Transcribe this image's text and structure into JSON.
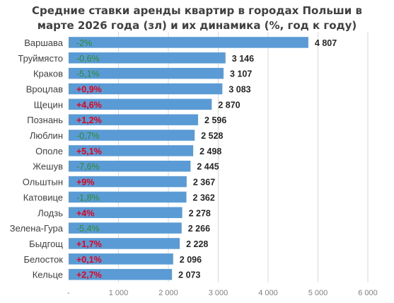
{
  "chart_data": {
    "type": "bar",
    "orientation": "horizontal",
    "title_lines": [
      "Средние ставки аренды квартир в городах Польши в",
      "марте 2026 года (зл) и их динамика (%, год к году)"
    ],
    "categories": [
      "Варшава",
      "Труймясто",
      "Краков",
      "Вроцлав",
      "Щецин",
      "Познань",
      "Люблин",
      "Ополе",
      "Жешув",
      "Ольштын",
      "Катовице",
      "Лодзь",
      "Зелена-Гура",
      "Быдгощ",
      "Белосток",
      "Кельце"
    ],
    "values": [
      4807,
      3146,
      3107,
      3083,
      2870,
      2596,
      2528,
      2498,
      2445,
      2367,
      2362,
      2278,
      2266,
      2228,
      2096,
      2073
    ],
    "value_labels": [
      "4 807",
      "3 146",
      "3 107",
      "3 083",
      "2 870",
      "2 596",
      "2 528",
      "2 498",
      "2 445",
      "2 367",
      "2 362",
      "2 278",
      "2 266",
      "2 228",
      "2 096",
      "2 073"
    ],
    "yoy_changes": [
      -2,
      -0.6,
      -5.1,
      0.9,
      4.6,
      1.2,
      -0.7,
      5.1,
      -7.6,
      9,
      -1.8,
      4,
      -5.4,
      1.7,
      0.1,
      2.7
    ],
    "yoy_labels": [
      "-2%",
      "-0,6%",
      "-5,1%",
      "+0,9%",
      "+4,6%",
      "+1,2%",
      "-0,7%",
      "+5,1%",
      "-7,6%",
      "+9%",
      "-1,8%",
      "+4%",
      "-5,4%",
      "+1,7%",
      "+0,1%",
      "+2,7%"
    ],
    "xlim": [
      0,
      6000
    ],
    "x_ticks": [
      "-",
      "1 000",
      "2 000",
      "3 000",
      "4 000",
      "5 000",
      "6 000"
    ],
    "x_tick_values": [
      0,
      1000,
      2000,
      3000,
      4000,
      5000,
      6000
    ],
    "grid": true,
    "legend": "none",
    "colors": {
      "bar": "#5b9bd5",
      "negative_change": "#2e8b2e",
      "positive_change": "#e6001e",
      "gridline": "#d9d9d9",
      "axis_text": "#7f7f7f",
      "category_text": "#404040",
      "value_text": "#262626",
      "title_text": "#404040"
    }
  }
}
